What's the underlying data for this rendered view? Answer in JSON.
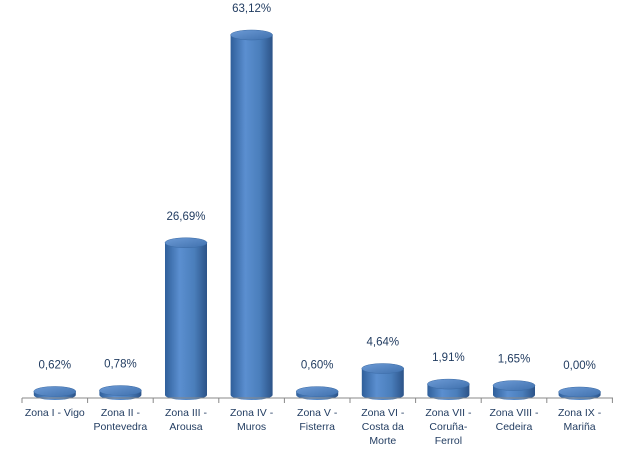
{
  "chart_data": {
    "type": "bar",
    "style": "3d-cylinder",
    "title": "",
    "xlabel": "",
    "ylabel": "",
    "ylim": [
      0,
      63.12
    ],
    "grid": false,
    "legend": "none",
    "bar_color": "#4a7ebb",
    "label_color": "#1f3a5f",
    "categories": [
      [
        "Zona I - Vigo"
      ],
      [
        "Zona II -",
        "Pontevedra"
      ],
      [
        "Zona III -",
        "Arousa"
      ],
      [
        "Zona IV -",
        "Muros"
      ],
      [
        "Zona V -",
        "Fisterra"
      ],
      [
        "Zona VI -",
        "Costa da",
        "Morte"
      ],
      [
        "Zona VII -",
        "Coruña-",
        "Ferrol"
      ],
      [
        "Zona VIII -",
        "Cedeira"
      ],
      [
        "Zona IX -",
        "Mariña"
      ]
    ],
    "values": [
      0.62,
      0.78,
      26.69,
      63.12,
      0.6,
      4.64,
      1.91,
      1.65,
      0.0
    ],
    "data_labels": [
      "0,62%",
      "0,78%",
      "26,69%",
      "63,12%",
      "0,60%",
      "4,64%",
      "1,91%",
      "1,65%",
      "0,00%"
    ]
  }
}
